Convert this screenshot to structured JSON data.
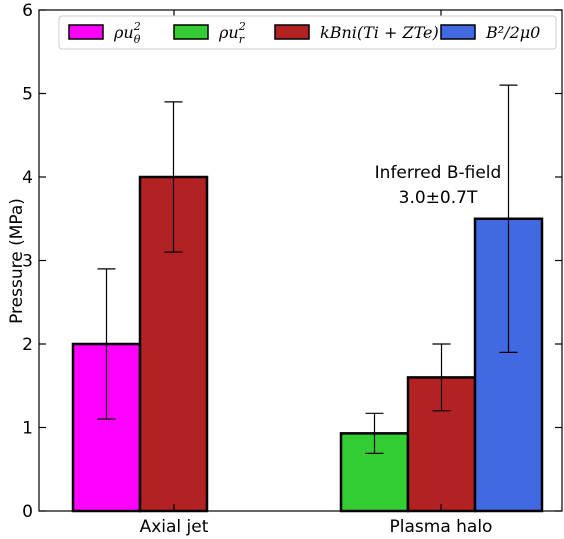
{
  "chart_data": {
    "type": "bar",
    "categories": [
      "Axial jet",
      "Plasma halo"
    ],
    "ylabel": "Pressure (MPa)",
    "ylim": [
      0,
      6
    ],
    "yticks": [
      "0",
      "1",
      "2",
      "3",
      "4",
      "5",
      "6"
    ],
    "legend_position": "top",
    "series": [
      {
        "name": "ρu²θ",
        "legend_base": "ρu",
        "legend_sup": "2",
        "legend_sub": "θ",
        "color": "#ff00ff",
        "values": [
          2.0,
          null
        ],
        "errors": [
          0.9,
          null
        ]
      },
      {
        "name": "ρu²r",
        "legend_base": "ρu",
        "legend_sup": "2",
        "legend_sub": "r",
        "color": "#33cc33",
        "values": [
          null,
          0.93
        ],
        "errors": [
          null,
          0.24
        ]
      },
      {
        "name": "kBni(Ti + ZTe)",
        "color": "#b22222",
        "values": [
          4.0,
          1.6
        ],
        "errors": [
          0.9,
          0.4
        ]
      },
      {
        "name": "B²/2μ0",
        "color": "#4169e1",
        "values": [
          0.0,
          3.5
        ],
        "errors": [
          null,
          1.6
        ]
      }
    ],
    "annotation": {
      "line1": "Inferred B-field",
      "line2": "3.0±0.7T"
    }
  }
}
